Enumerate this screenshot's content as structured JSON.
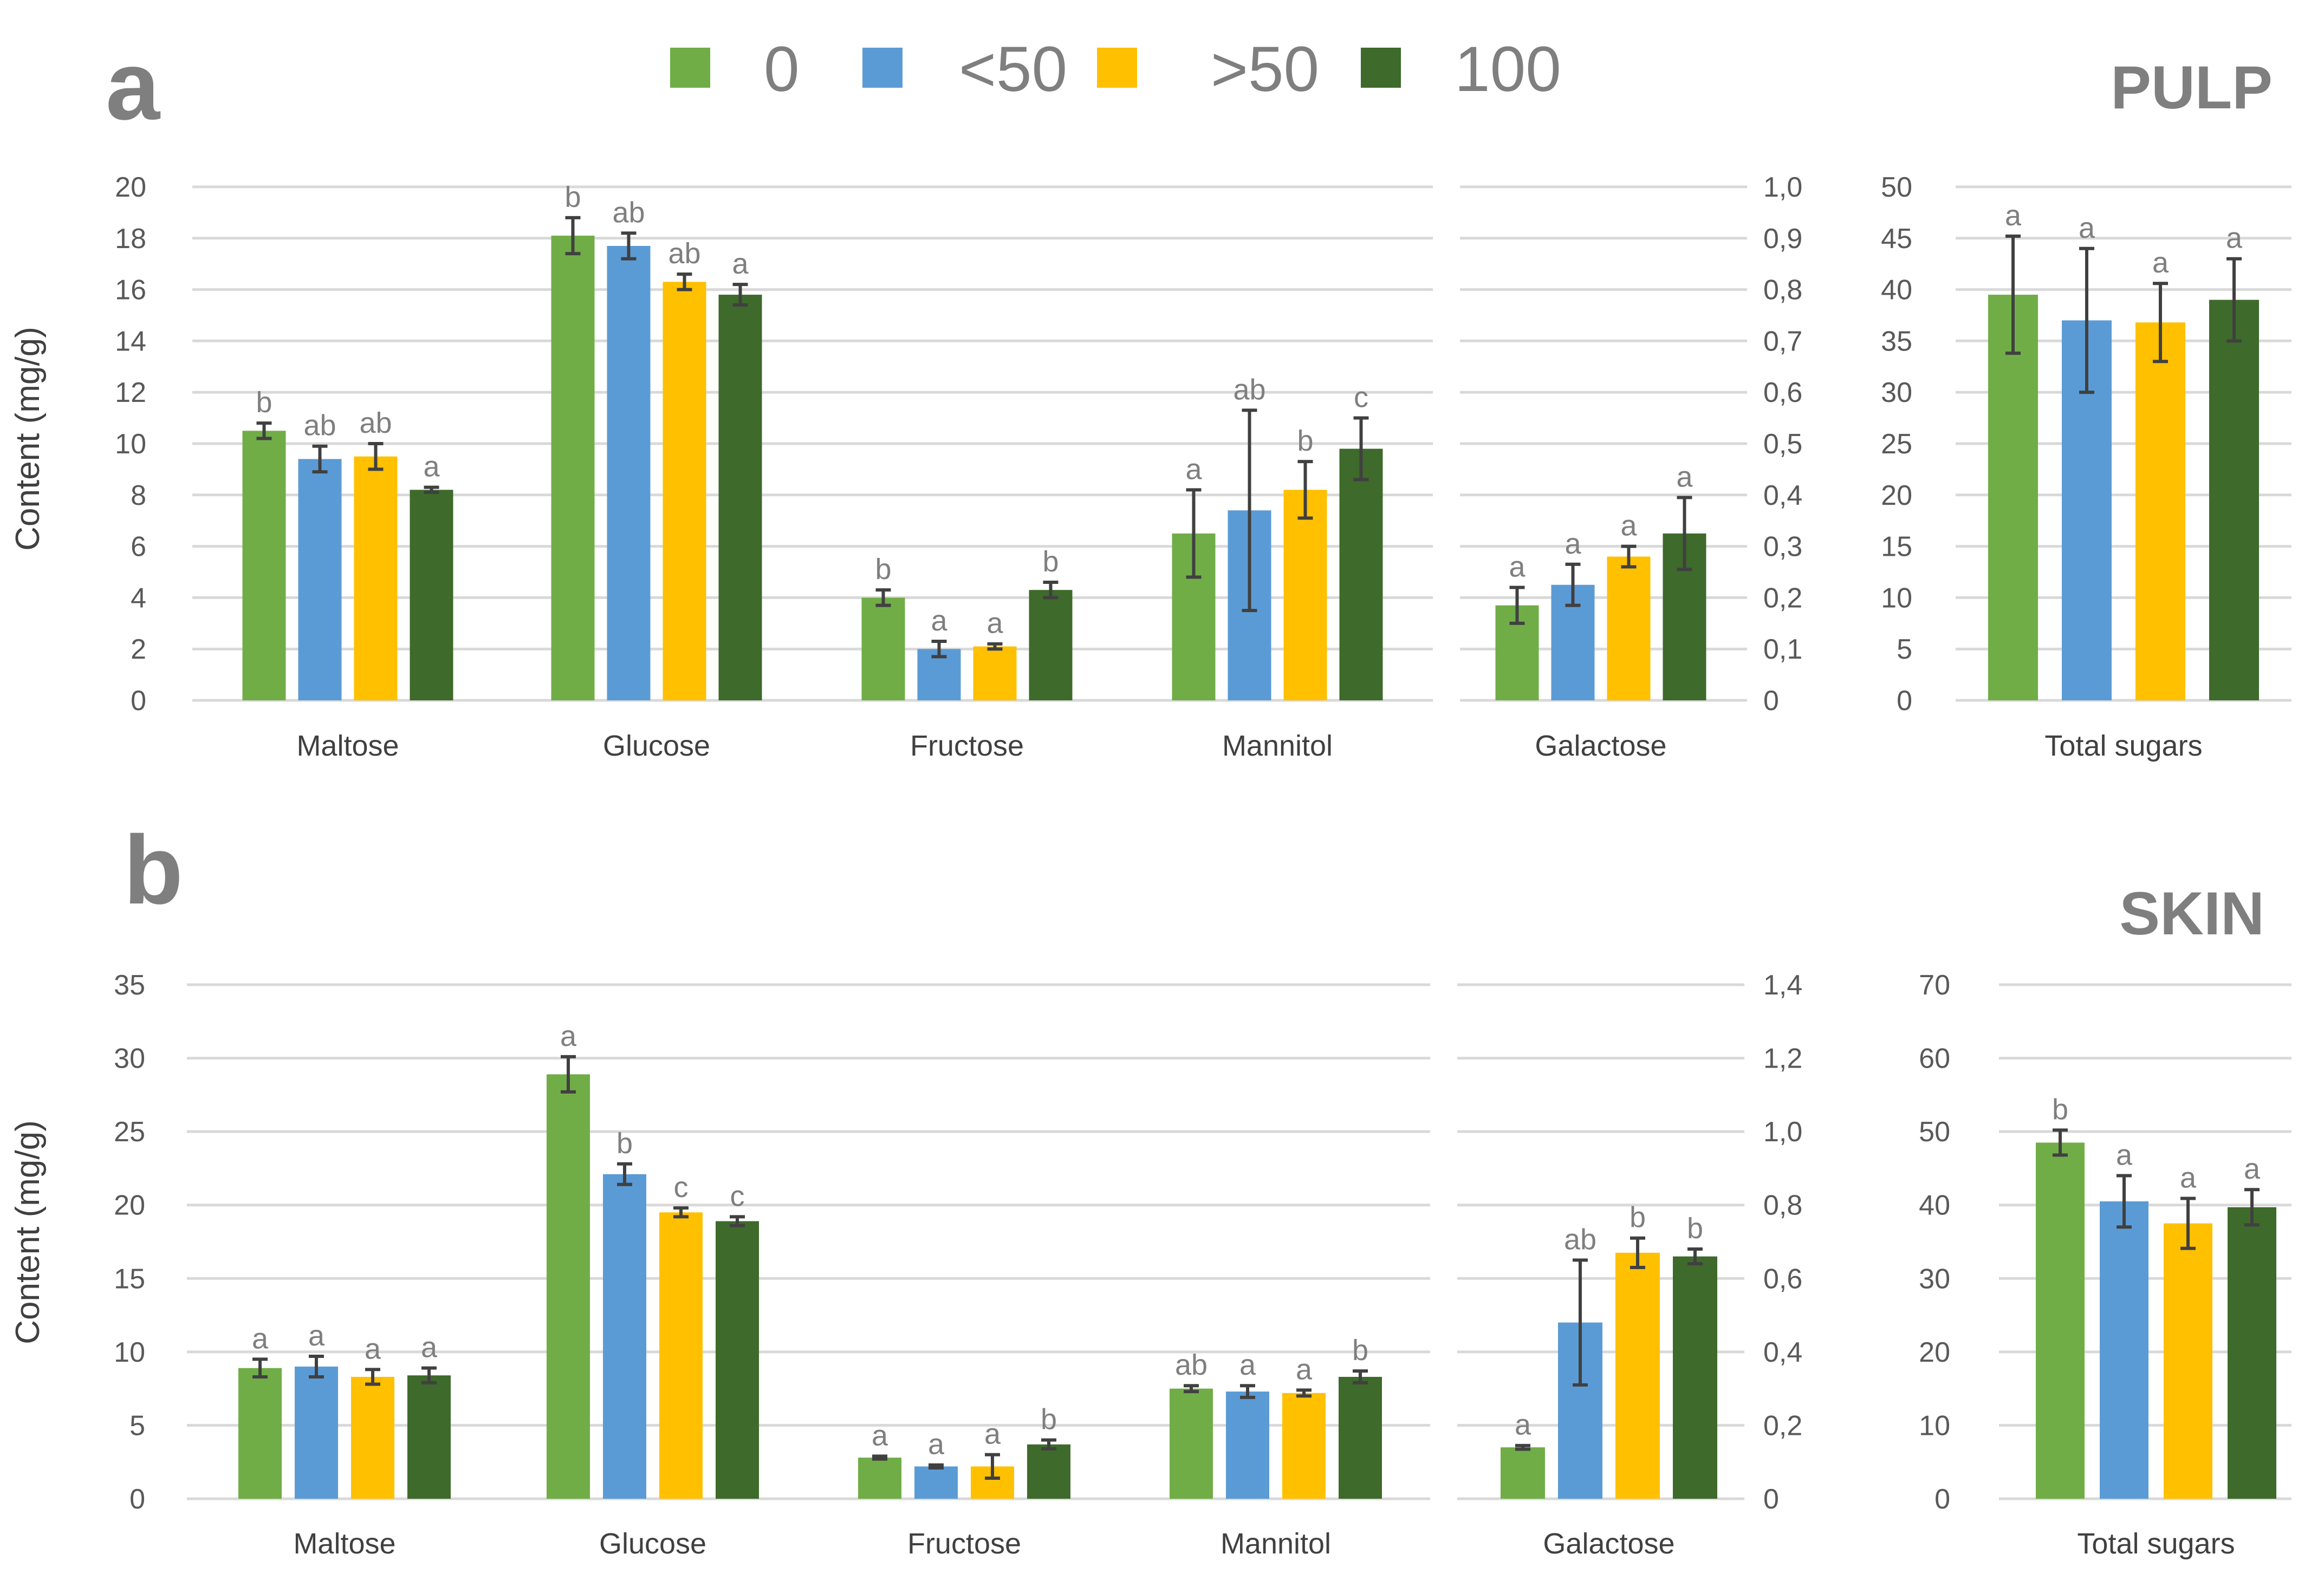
{
  "legend": [
    {
      "label": "0",
      "color": "#70ad47"
    },
    {
      "label": "<50",
      "color": "#5b9bd5"
    },
    {
      "label": ">50",
      "color": "#ffc000"
    },
    {
      "label": "100",
      "color": "#3e6a2b"
    }
  ],
  "chart_data": [
    {
      "type": "bar",
      "panel_label": "a",
      "tissue_label": "PULP",
      "ylabel": "Content (mg/g)",
      "groups": [
        {
          "name": "main",
          "categories": [
            "Maltose",
            "Glucose",
            "Fructose",
            "Mannitol"
          ],
          "ylim": [
            0,
            20
          ],
          "yticks": [
            "0",
            "2",
            "4",
            "6",
            "8",
            "10",
            "12",
            "14",
            "16",
            "18",
            "20"
          ],
          "tick_step": 2,
          "secondary_axis_ticks": [
            "0",
            "0,1",
            "0,2",
            "0,3",
            "0,4",
            "0,5",
            "0,6",
            "0,7",
            "0,8",
            "0,9",
            "1,0"
          ],
          "series": [
            {
              "name": "0",
              "values": [
                10.5,
                18.1,
                4.0,
                6.5
              ],
              "errors": [
                0.3,
                0.7,
                0.3,
                1.7
              ],
              "letters": [
                "b",
                "b",
                "b",
                "a"
              ]
            },
            {
              "name": "<50",
              "values": [
                9.4,
                17.7,
                2.0,
                7.4
              ],
              "errors": [
                0.5,
                0.5,
                0.3,
                3.9
              ],
              "letters": [
                "ab",
                "ab",
                "a",
                "ab"
              ]
            },
            {
              "name": ">50",
              "values": [
                9.5,
                16.3,
                2.1,
                8.2
              ],
              "errors": [
                0.5,
                0.3,
                0.1,
                1.1
              ],
              "letters": [
                "ab",
                "ab",
                "a",
                "b"
              ]
            },
            {
              "name": "100",
              "values": [
                8.2,
                15.8,
                4.3,
                9.8
              ],
              "errors": [
                0.1,
                0.4,
                0.3,
                1.2
              ],
              "letters": [
                "a",
                "a",
                "b",
                "c"
              ]
            }
          ]
        },
        {
          "name": "galactose",
          "categories": [
            "Galactose"
          ],
          "ylim": [
            0,
            1.0
          ],
          "series": [
            {
              "name": "0",
              "values": [
                0.185
              ],
              "errors": [
                0.035
              ],
              "letters": [
                "a"
              ]
            },
            {
              "name": "<50",
              "values": [
                0.225
              ],
              "errors": [
                0.04
              ],
              "letters": [
                "a"
              ]
            },
            {
              "name": ">50",
              "values": [
                0.28
              ],
              "errors": [
                0.02
              ],
              "letters": [
                "a"
              ]
            },
            {
              "name": "100",
              "values": [
                0.325
              ],
              "errors": [
                0.07
              ],
              "letters": [
                "a"
              ]
            }
          ]
        },
        {
          "name": "total",
          "categories": [
            "Total sugars"
          ],
          "ylim": [
            0,
            50
          ],
          "yticks": [
            "0",
            "5",
            "10",
            "15",
            "20",
            "25",
            "30",
            "35",
            "40",
            "45",
            "50"
          ],
          "tick_step": 5,
          "series": [
            {
              "name": "0",
              "values": [
                39.5
              ],
              "errors": [
                5.7
              ],
              "letters": [
                "a"
              ]
            },
            {
              "name": "<50",
              "values": [
                37.0
              ],
              "errors": [
                7.0
              ],
              "letters": [
                "a"
              ]
            },
            {
              "name": ">50",
              "values": [
                36.8
              ],
              "errors": [
                3.8
              ],
              "letters": [
                "a"
              ]
            },
            {
              "name": "100",
              "values": [
                39.0
              ],
              "errors": [
                4.0
              ],
              "letters": [
                "a"
              ]
            }
          ]
        }
      ]
    },
    {
      "type": "bar",
      "panel_label": "b",
      "tissue_label": "SKIN",
      "ylabel": "Content (mg/g)",
      "groups": [
        {
          "name": "main",
          "categories": [
            "Maltose",
            "Glucose",
            "Fructose",
            "Mannitol"
          ],
          "ylim": [
            0,
            35
          ],
          "yticks": [
            "0",
            "5",
            "10",
            "15",
            "20",
            "25",
            "30",
            "35"
          ],
          "tick_step": 5,
          "secondary_axis_ticks": [
            "0",
            "0,2",
            "0,4",
            "0,6",
            "0,8",
            "1,0",
            "1,2",
            "1,4"
          ],
          "series": [
            {
              "name": "0",
              "values": [
                8.9,
                28.9,
                2.8,
                7.5
              ],
              "errors": [
                0.6,
                1.2,
                0.1,
                0.2
              ],
              "letters": [
                "a",
                "a",
                "a",
                "ab"
              ]
            },
            {
              "name": "<50",
              "values": [
                9.0,
                22.1,
                2.2,
                7.3
              ],
              "errors": [
                0.7,
                0.7,
                0.1,
                0.4
              ],
              "letters": [
                "a",
                "b",
                "a",
                "a"
              ]
            },
            {
              "name": ">50",
              "values": [
                8.3,
                19.5,
                2.2,
                7.2
              ],
              "errors": [
                0.5,
                0.3,
                0.8,
                0.2
              ],
              "letters": [
                "a",
                "c",
                "a",
                "a"
              ]
            },
            {
              "name": "100",
              "values": [
                8.4,
                18.9,
                3.7,
                8.3
              ],
              "errors": [
                0.5,
                0.3,
                0.3,
                0.4
              ],
              "letters": [
                "a",
                "c",
                "b",
                "b"
              ]
            }
          ]
        },
        {
          "name": "galactose",
          "categories": [
            "Galactose"
          ],
          "ylim": [
            0,
            1.4
          ],
          "series": [
            {
              "name": "0",
              "values": [
                0.14
              ],
              "errors": [
                0.005
              ],
              "letters": [
                "a"
              ]
            },
            {
              "name": "<50",
              "values": [
                0.48
              ],
              "errors": [
                0.17
              ],
              "letters": [
                "ab"
              ]
            },
            {
              "name": ">50",
              "values": [
                0.67
              ],
              "errors": [
                0.04
              ],
              "letters": [
                "b"
              ]
            },
            {
              "name": "100",
              "values": [
                0.66
              ],
              "errors": [
                0.02
              ],
              "letters": [
                "b"
              ]
            }
          ]
        },
        {
          "name": "total",
          "categories": [
            "Total sugars"
          ],
          "ylim": [
            0,
            70
          ],
          "yticks": [
            "0",
            "10",
            "20",
            "30",
            "40",
            "50",
            "60",
            "70"
          ],
          "tick_step": 10,
          "series": [
            {
              "name": "0",
              "values": [
                48.5
              ],
              "errors": [
                1.7
              ],
              "letters": [
                "b"
              ]
            },
            {
              "name": "<50",
              "values": [
                40.5
              ],
              "errors": [
                3.5
              ],
              "letters": [
                "a"
              ]
            },
            {
              "name": ">50",
              "values": [
                37.5
              ],
              "errors": [
                3.4
              ],
              "letters": [
                "a"
              ]
            },
            {
              "name": "100",
              "values": [
                39.7
              ],
              "errors": [
                2.4
              ],
              "letters": [
                "a"
              ]
            }
          ]
        }
      ]
    }
  ]
}
